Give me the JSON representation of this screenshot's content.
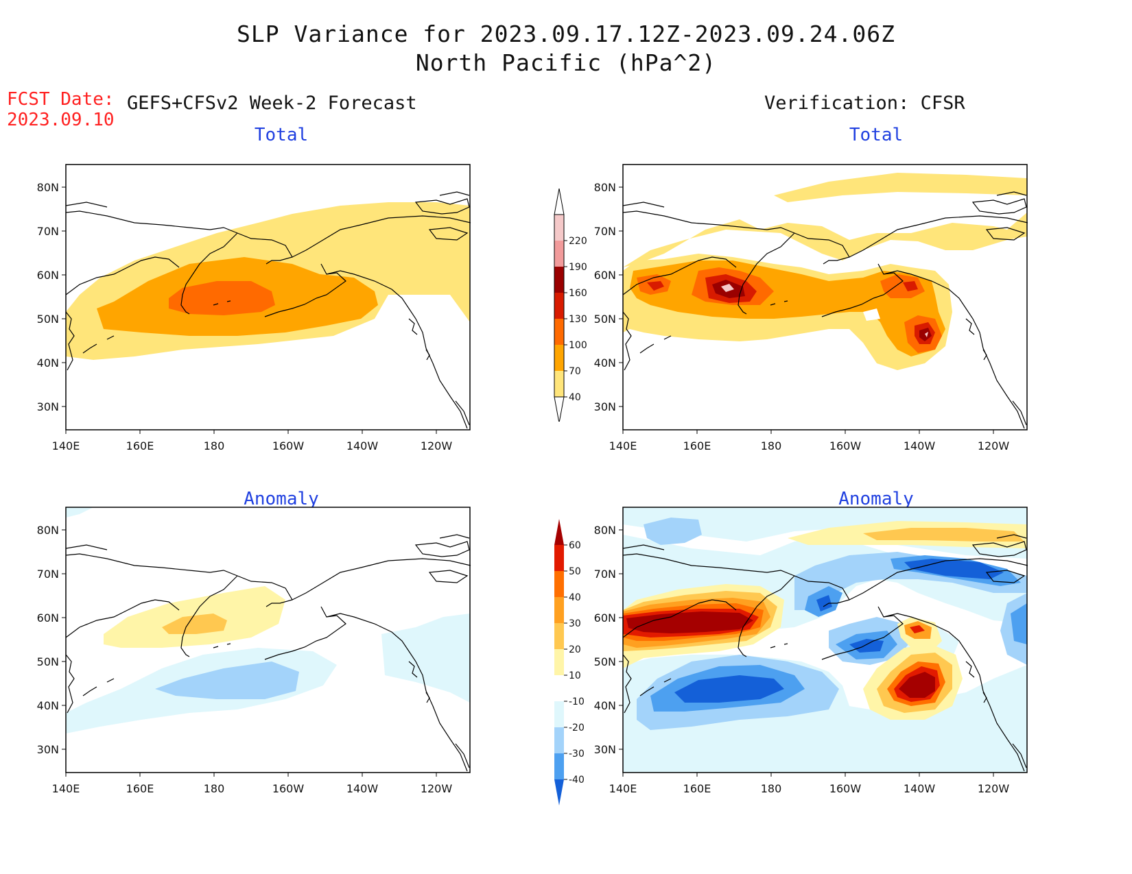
{
  "header": {
    "title_line1": "SLP Variance for 2023.09.17.12Z-2023.09.24.06Z",
    "title_line2": "North Pacific (hPa^2)",
    "fcst_label": "FCST Date:",
    "fcst_date": "2023.09.10",
    "left_heading": "GEFS+CFSv2 Week-2 Forecast",
    "right_heading": "Verification: CFSR"
  },
  "panels": {
    "forecast_total": {
      "title": "Total"
    },
    "verif_total": {
      "title": "Total"
    },
    "forecast_anomaly": {
      "title": "Anomaly"
    },
    "verif_anomaly": {
      "title": "Anomaly"
    }
  },
  "axes": {
    "lat_labels": [
      "80N",
      "70N",
      "60N",
      "50N",
      "40N",
      "30N"
    ],
    "lon_labels": [
      "140E",
      "160E",
      "180",
      "160W",
      "140W",
      "120W"
    ]
  },
  "colorbar_total": {
    "labels": [
      "220",
      "190",
      "160",
      "130",
      "100",
      "70",
      "40"
    ],
    "colors": [
      "#f5c9c9",
      "#f29b9b",
      "#9a0000",
      "#d81b00",
      "#ff6a00",
      "#ffa500",
      "#ffe57a"
    ]
  },
  "colorbar_anomaly": {
    "labels": [
      "60",
      "50",
      "40",
      "30",
      "20",
      "10",
      "-10",
      "-20",
      "-30",
      "-40"
    ],
    "colors": [
      "#a50000",
      "#e21a00",
      "#ff6f00",
      "#ffa020",
      "#ffc850",
      "#fff5a8",
      "#ffffff",
      "#dff7fc",
      "#a3d3fa",
      "#4da0f0",
      "#1460d8"
    ]
  }
}
